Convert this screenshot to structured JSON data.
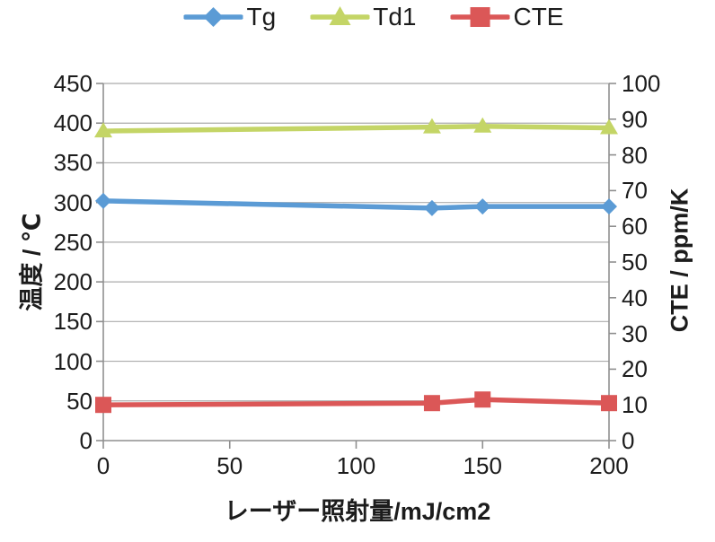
{
  "page": {
    "background": "#ffffff"
  },
  "chart_data": {
    "type": "line",
    "title": "",
    "xlabel": "レーザー照射量/mJ/cm2",
    "x": [
      0,
      130,
      150,
      200
    ],
    "x_range": [
      0,
      200
    ],
    "x_ticks": [
      0,
      50,
      100,
      150,
      200
    ],
    "left_axis": {
      "label": "温度 / ℃",
      "min": 0,
      "max": 450,
      "step": 50,
      "ticks": [
        0,
        50,
        100,
        150,
        200,
        250,
        300,
        350,
        400,
        450
      ]
    },
    "right_axis": {
      "label": "CTE / ppm/K",
      "min": 0,
      "max": 100,
      "step": 10,
      "ticks": [
        0,
        10,
        20,
        30,
        40,
        50,
        60,
        70,
        80,
        90,
        100
      ]
    },
    "series": [
      {
        "name": "Tg",
        "axis": "left",
        "marker": "diamond",
        "color": "#5B9BD5",
        "values": [
          302,
          293,
          295,
          295
        ]
      },
      {
        "name": "Td1",
        "axis": "left",
        "marker": "triangle",
        "color": "#C4D566",
        "values": [
          390,
          395,
          396,
          394
        ]
      },
      {
        "name": "CTE",
        "axis": "right",
        "marker": "square",
        "color": "#DB5757",
        "values": [
          10,
          10.5,
          11.5,
          10.5
        ]
      }
    ],
    "grid": true,
    "legend_position": "top",
    "colors": {
      "grid": "#ABABAB",
      "axis": "#8F8F8F",
      "text": "#1C1C1C"
    }
  }
}
